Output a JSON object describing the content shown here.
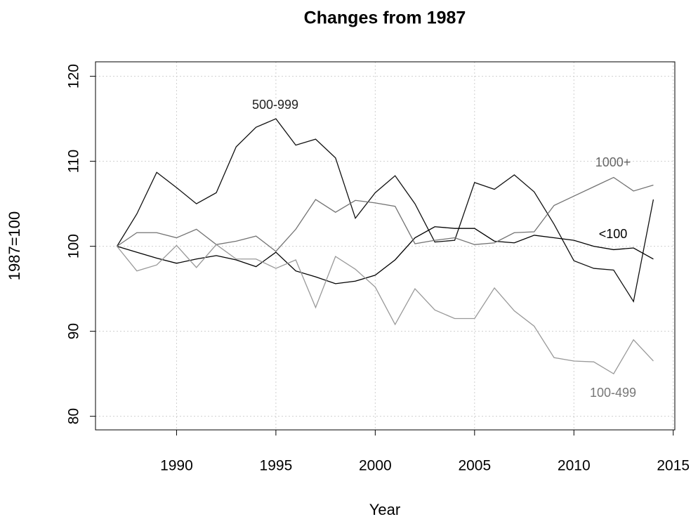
{
  "chart_data": {
    "type": "line",
    "title": "Changes from 1987",
    "x_label": "Year",
    "y_label": "1987=100",
    "x": [
      1987,
      1988,
      1989,
      1990,
      1991,
      1992,
      1993,
      1994,
      1995,
      1996,
      1997,
      1998,
      1999,
      2000,
      2001,
      2002,
      2003,
      2004,
      2005,
      2006,
      2007,
      2008,
      2009,
      2010,
      2011,
      2012,
      2013,
      2014
    ],
    "series": [
      {
        "name": "500-999",
        "color": "#111111",
        "values": [
          100,
          103.8,
          108.7,
          106.9,
          105.0,
          106.3,
          111.7,
          114.0,
          115.0,
          111.9,
          112.6,
          110.4,
          103.3,
          106.3,
          108.3,
          105.0,
          100.5,
          100.7,
          107.5,
          106.7,
          108.4,
          106.4,
          102.6,
          98.3,
          97.4,
          97.2,
          93.5,
          105.5
        ]
      },
      {
        "name": "<100",
        "color": "#000000",
        "values": [
          100,
          99.3,
          98.6,
          98.0,
          98.5,
          98.9,
          98.4,
          97.6,
          99.3,
          97.1,
          96.4,
          95.6,
          95.9,
          96.6,
          98.4,
          101.0,
          102.3,
          102.1,
          102.1,
          100.6,
          100.4,
          101.3,
          101.0,
          100.7,
          100.0,
          99.6,
          99.8,
          98.5
        ]
      },
      {
        "name": "1000+",
        "color": "#737373",
        "values": [
          100,
          101.6,
          101.6,
          101.0,
          102.0,
          100.2,
          100.6,
          101.2,
          99.4,
          102.0,
          105.5,
          104.0,
          105.4,
          105.1,
          104.7,
          100.3,
          100.7,
          101.0,
          100.2,
          100.4,
          101.6,
          101.7,
          104.8,
          105.9,
          107.0,
          108.1,
          106.5,
          107.2
        ]
      },
      {
        "name": "100-499",
        "color": "#999999",
        "values": [
          100,
          97.1,
          97.8,
          100.1,
          97.5,
          100.2,
          98.5,
          98.5,
          97.4,
          98.4,
          92.8,
          98.8,
          97.3,
          95.2,
          90.8,
          95.0,
          92.5,
          91.5,
          91.5,
          95.1,
          92.4,
          90.6,
          86.9,
          86.5,
          86.4,
          85.0,
          89.0,
          86.5
        ]
      }
    ],
    "xlim": [
      1985.92,
      2015.08
    ],
    "xticks": [
      1990,
      1995,
      2000,
      2005,
      2010,
      2015
    ],
    "ylim": [
      78.4,
      121.7
    ],
    "yticks": [
      80,
      90,
      100,
      110,
      120
    ],
    "grid": true
  }
}
